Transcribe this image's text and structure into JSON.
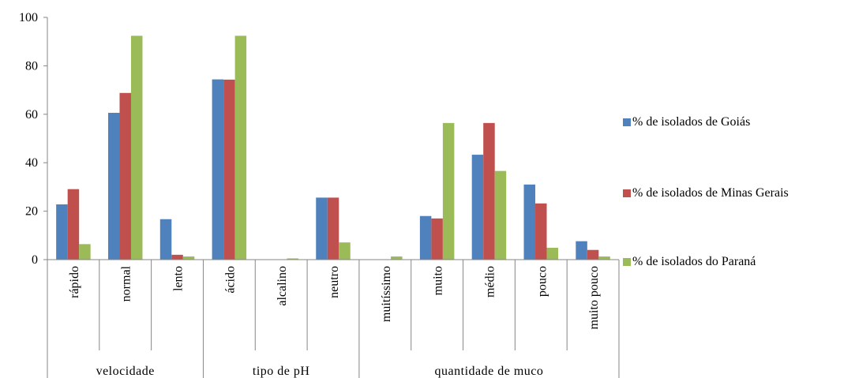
{
  "chart_data": {
    "type": "bar",
    "title": "",
    "xlabel": "",
    "ylabel": "",
    "ylim": [
      0,
      100
    ],
    "yticks": [
      0,
      20,
      40,
      60,
      80,
      100
    ],
    "categories": [
      "rápido",
      "normal",
      "lento",
      "ácido",
      "alcalino",
      "neutro",
      "muitíssimo",
      "muito",
      "médio",
      "pouco",
      "muito pouco"
    ],
    "groups": [
      {
        "label": "velocidade",
        "count": 3
      },
      {
        "label": "tipo de pH",
        "count": 3
      },
      {
        "label": "quantidade de muco",
        "count": 5
      }
    ],
    "series": [
      {
        "name": "% de isolados de Goiás",
        "color": "#4F81BD",
        "values": [
          22.8,
          60.6,
          16.7,
          74.4,
          0,
          25.6,
          0,
          18.0,
          43.3,
          31.0,
          7.6
        ]
      },
      {
        "name": "% de isolados de Minas Gerais",
        "color": "#C0504D",
        "values": [
          29.1,
          68.8,
          2.0,
          74.3,
          0,
          25.6,
          0,
          17.0,
          56.4,
          23.2,
          4.0
        ]
      },
      {
        "name": "% de isolados do Paraná",
        "color": "#9BBB59",
        "values": [
          6.4,
          92.4,
          1.3,
          92.4,
          0.5,
          7.1,
          1.3,
          56.4,
          36.6,
          4.9,
          1.3
        ]
      }
    ],
    "legend_position": "right",
    "grid": false
  }
}
